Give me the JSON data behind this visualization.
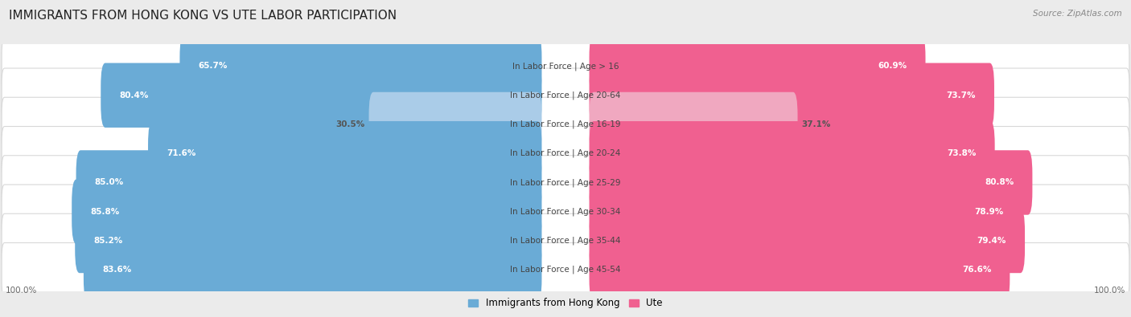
{
  "title": "IMMIGRANTS FROM HONG KONG VS UTE LABOR PARTICIPATION",
  "source": "Source: ZipAtlas.com",
  "categories": [
    "In Labor Force | Age > 16",
    "In Labor Force | Age 20-64",
    "In Labor Force | Age 16-19",
    "In Labor Force | Age 20-24",
    "In Labor Force | Age 25-29",
    "In Labor Force | Age 30-34",
    "In Labor Force | Age 35-44",
    "In Labor Force | Age 45-54"
  ],
  "hk_values": [
    65.7,
    80.4,
    30.5,
    71.6,
    85.0,
    85.8,
    85.2,
    83.6
  ],
  "ute_values": [
    60.9,
    73.7,
    37.1,
    73.8,
    80.8,
    78.9,
    79.4,
    76.6
  ],
  "hk_color": "#6aabd6",
  "hk_light_color": "#aacce8",
  "ute_color": "#f06090",
  "ute_light_color": "#f0a8c0",
  "bg_color": "#ebebeb",
  "row_bg": "#f5f5f5",
  "row_border": "#d8d8d8",
  "legend_hk": "Immigrants from Hong Kong",
  "legend_ute": "Ute",
  "x_label": "100.0%",
  "title_fontsize": 11,
  "value_fontsize": 7.5,
  "category_fontsize": 7.5,
  "legend_fontsize": 8.5
}
